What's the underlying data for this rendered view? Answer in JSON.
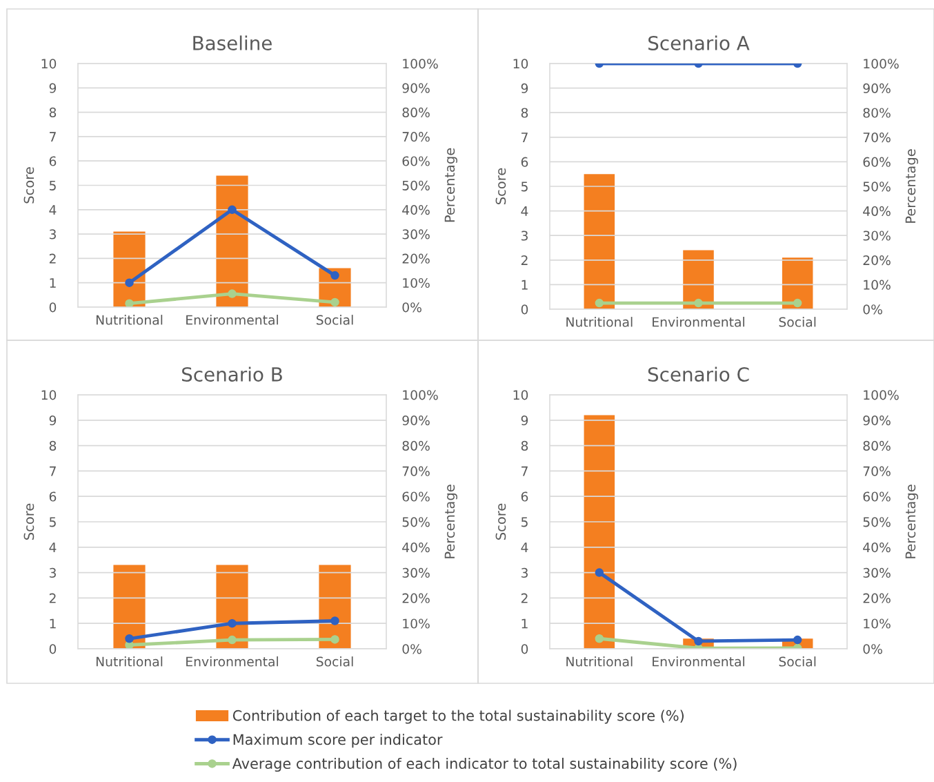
{
  "chart_data": [
    {
      "type": "bar",
      "title": "Baseline",
      "ylabel": "Score",
      "y2label": "Percentage",
      "categories": [
        "Nutritional",
        "Environmental",
        "Social"
      ],
      "ylim": [
        0,
        10
      ],
      "yticks": [
        0,
        1,
        2,
        3,
        4,
        5,
        6,
        7,
        8,
        9,
        10
      ],
      "y2lim": [
        0,
        100
      ],
      "y2ticks": [
        {
          "value": 0,
          "label": "0%"
        },
        {
          "value": 10,
          "label": "10%"
        },
        {
          "value": 20,
          "label": "20%"
        },
        {
          "value": 30,
          "label": "30%"
        },
        {
          "value": 40,
          "label": "40%"
        },
        {
          "value": 50,
          "label": "50%"
        },
        {
          "value": 60,
          "label": "60%"
        },
        {
          "value": 70,
          "label": "70%"
        },
        {
          "value": 80,
          "label": "80%"
        },
        {
          "value": 90,
          "label": "90%"
        },
        {
          "value": 100,
          "label": "100%"
        }
      ],
      "grid": "y",
      "legend": "bottom",
      "series": [
        {
          "name": "Contribution of each target to the total sustainability score (%)",
          "type": "bar",
          "axis": "y2",
          "color": "#f47f20",
          "values": [
            31,
            54,
            16
          ]
        },
        {
          "name": "Maximum score per indicator",
          "type": "line",
          "axis": "y",
          "color": "#2f62c2",
          "marker": "circle",
          "values": [
            1,
            4,
            1.3
          ]
        },
        {
          "name": "Average contribution of each indicator to total sustainability score (%)",
          "type": "line",
          "axis": "y2",
          "color": "#a9d18e",
          "marker": "circle",
          "values": [
            1.5,
            5.5,
            2
          ]
        }
      ]
    },
    {
      "type": "bar",
      "title": "Scenario A",
      "ylabel": "Score",
      "y2label": "Percentage",
      "categories": [
        "Nutritional",
        "Environmental",
        "Social"
      ],
      "ylim": [
        0,
        10
      ],
      "yticks": [
        0,
        1,
        2,
        3,
        4,
        5,
        6,
        7,
        8,
        9,
        10
      ],
      "y2lim": [
        0,
        100
      ],
      "y2ticks": [
        {
          "value": 0,
          "label": "0%"
        },
        {
          "value": 10,
          "label": "10%"
        },
        {
          "value": 20,
          "label": "20%"
        },
        {
          "value": 30,
          "label": "30%"
        },
        {
          "value": 40,
          "label": "40%"
        },
        {
          "value": 50,
          "label": "50%"
        },
        {
          "value": 60,
          "label": "60%"
        },
        {
          "value": 70,
          "label": "70%"
        },
        {
          "value": 80,
          "label": "80%"
        },
        {
          "value": 90,
          "label": "90%"
        },
        {
          "value": 100,
          "label": "100%"
        }
      ],
      "grid": "y",
      "legend": false,
      "series": [
        {
          "type": "bar",
          "axis": "y2",
          "color": "#f47f20",
          "values": [
            55,
            24,
            21
          ]
        },
        {
          "type": "line",
          "axis": "y",
          "color": "#2f62c2",
          "marker": "circle",
          "values": [
            10,
            10,
            10
          ]
        },
        {
          "type": "line",
          "axis": "y2",
          "color": "#a9d18e",
          "marker": "circle",
          "values": [
            2.5,
            2.5,
            2.5
          ]
        }
      ]
    },
    {
      "type": "bar",
      "title": "Scenario B",
      "ylabel": "Score",
      "y2label": "Percentage",
      "categories": [
        "Nutritional",
        "Environmental",
        "Social"
      ],
      "ylim": [
        0,
        10
      ],
      "yticks": [
        0,
        1,
        2,
        3,
        4,
        5,
        6,
        7,
        8,
        9,
        10
      ],
      "y2lim": [
        0,
        100
      ],
      "y2ticks": [
        {
          "value": 0,
          "label": "0%"
        },
        {
          "value": 10,
          "label": "10%"
        },
        {
          "value": 20,
          "label": "20%"
        },
        {
          "value": 30,
          "label": "30%"
        },
        {
          "value": 40,
          "label": "40%"
        },
        {
          "value": 50,
          "label": "50%"
        },
        {
          "value": 60,
          "label": "60%"
        },
        {
          "value": 70,
          "label": "70%"
        },
        {
          "value": 80,
          "label": "80%"
        },
        {
          "value": 90,
          "label": "90%"
        },
        {
          "value": 100,
          "label": "100%"
        }
      ],
      "grid": "y",
      "legend": false,
      "series": [
        {
          "type": "bar",
          "axis": "y2",
          "color": "#f47f20",
          "values": [
            33,
            33,
            33
          ]
        },
        {
          "type": "line",
          "axis": "y",
          "color": "#2f62c2",
          "marker": "circle",
          "values": [
            0.4,
            1.0,
            1.1
          ]
        },
        {
          "type": "line",
          "axis": "y2",
          "color": "#a9d18e",
          "marker": "circle",
          "values": [
            1.5,
            3.5,
            3.7
          ]
        }
      ]
    },
    {
      "type": "bar",
      "title": "Scenario C",
      "ylabel": "Score",
      "y2label": "Percentage",
      "categories": [
        "Nutritional",
        "Environmental",
        "Social"
      ],
      "ylim": [
        0,
        10
      ],
      "yticks": [
        0,
        1,
        2,
        3,
        4,
        5,
        6,
        7,
        8,
        9,
        10
      ],
      "y2lim": [
        0,
        100
      ],
      "y2ticks": [
        {
          "value": 0,
          "label": "0%"
        },
        {
          "value": 10,
          "label": "10%"
        },
        {
          "value": 20,
          "label": "20%"
        },
        {
          "value": 30,
          "label": "30%"
        },
        {
          "value": 40,
          "label": "40%"
        },
        {
          "value": 50,
          "label": "50%"
        },
        {
          "value": 60,
          "label": "60%"
        },
        {
          "value": 70,
          "label": "70%"
        },
        {
          "value": 80,
          "label": "80%"
        },
        {
          "value": 90,
          "label": "90%"
        },
        {
          "value": 100,
          "label": "100%"
        }
      ],
      "grid": "y",
      "legend": false,
      "series": [
        {
          "type": "bar",
          "axis": "y2",
          "color": "#f47f20",
          "values": [
            92,
            4,
            4
          ]
        },
        {
          "type": "line",
          "axis": "y",
          "color": "#2f62c2",
          "marker": "circle",
          "values": [
            3,
            0.3,
            0.35
          ]
        },
        {
          "type": "line",
          "axis": "y2",
          "color": "#a9d18e",
          "marker": "circle",
          "values": [
            4,
            0.2,
            0.3
          ]
        }
      ]
    }
  ]
}
